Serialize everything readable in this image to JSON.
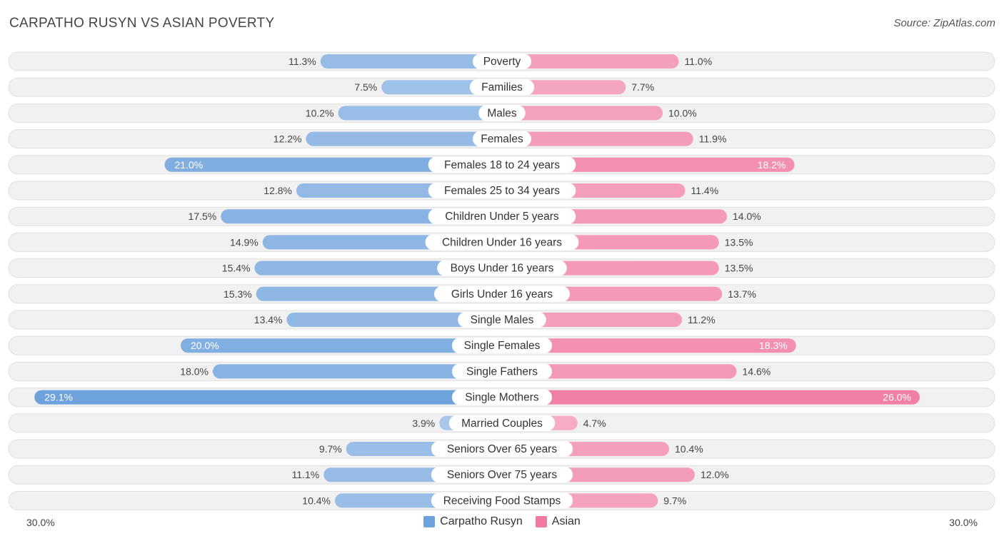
{
  "chart_data": {
    "type": "bar",
    "orientation": "diverging-horizontal",
    "title": "CARPATHO RUSYN VS ASIAN POVERTY",
    "source": "Source: ZipAtlas.com",
    "axis_min_label": "30.0%",
    "axis_max_label": "30.0%",
    "xlim": [
      0,
      30
    ],
    "categories": [
      "Poverty",
      "Families",
      "Males",
      "Females",
      "Females 18 to 24 years",
      "Females 25 to 34 years",
      "Children Under 5 years",
      "Children Under 16 years",
      "Boys Under 16 years",
      "Girls Under 16 years",
      "Single Males",
      "Single Females",
      "Single Fathers",
      "Single Mothers",
      "Married Couples",
      "Seniors Over 65 years",
      "Seniors Over 75 years",
      "Receiving Food Stamps"
    ],
    "series": [
      {
        "name": "Carpatho Rusyn",
        "color": "#6ea2dc",
        "values": [
          11.3,
          7.5,
          10.2,
          12.2,
          21.0,
          12.8,
          17.5,
          14.9,
          15.4,
          15.3,
          13.4,
          20.0,
          18.0,
          29.1,
          3.9,
          9.7,
          11.1,
          10.4
        ],
        "labels": [
          "11.3%",
          "7.5%",
          "10.2%",
          "12.2%",
          "21.0%",
          "12.8%",
          "17.5%",
          "14.9%",
          "15.4%",
          "15.3%",
          "13.4%",
          "20.0%",
          "18.0%",
          "29.1%",
          "3.9%",
          "9.7%",
          "11.1%",
          "10.4%"
        ]
      },
      {
        "name": "Asian",
        "color": "#f07aa0",
        "values": [
          11.0,
          7.7,
          10.0,
          11.9,
          18.2,
          11.4,
          14.0,
          13.5,
          13.5,
          13.7,
          11.2,
          18.3,
          14.6,
          26.0,
          4.7,
          10.4,
          12.0,
          9.7
        ],
        "labels": [
          "11.0%",
          "7.7%",
          "10.0%",
          "11.9%",
          "18.2%",
          "11.4%",
          "14.0%",
          "13.5%",
          "13.5%",
          "13.7%",
          "11.2%",
          "18.3%",
          "14.6%",
          "26.0%",
          "4.7%",
          "10.4%",
          "12.0%",
          "9.7%"
        ]
      }
    ]
  }
}
